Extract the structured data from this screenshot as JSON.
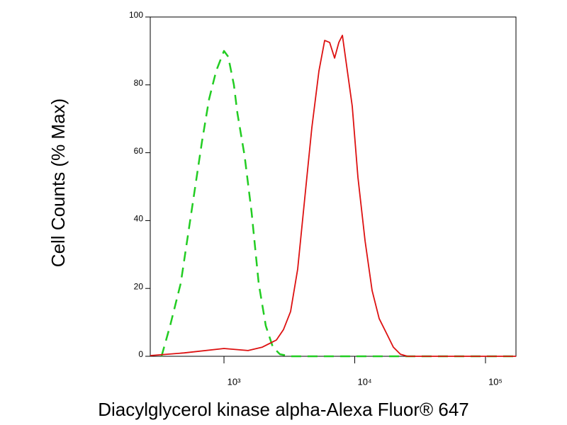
{
  "chart_data": {
    "type": "line",
    "x_label": "Diacylglycerol kinase alpha-Alexa Fluor® 647",
    "y_label": "Cell Counts (% Max)",
    "xscale": "log",
    "xlim": [
      273,
      171000
    ],
    "ylim": [
      0,
      100
    ],
    "xticks": [
      {
        "value": 1000,
        "label": "10³"
      },
      {
        "value": 10000,
        "label": "10⁴"
      },
      {
        "value": 100000,
        "label": "10⁵"
      }
    ],
    "yticks": [
      0,
      20,
      40,
      60,
      80,
      100
    ],
    "series": [
      {
        "color": "#22cc22",
        "linestyle": "dashed",
        "x": [
          333,
          387,
          467,
          563,
          679,
          769,
          871,
          1000,
          1078,
          1191,
          1268,
          1437,
          1627,
          1843,
          2088,
          2366,
          2680,
          3230,
          171000
        ],
        "values": [
          0,
          9,
          21.5,
          42.4,
          63.3,
          75.8,
          84.1,
          90,
          88.3,
          80,
          71.6,
          59.1,
          42.4,
          21.5,
          9,
          2.7,
          0.6,
          0,
          0
        ]
      },
      {
        "color": "#dd1111",
        "linestyle": "solid",
        "x": [
          273,
          497,
          1000,
          1528,
          1963,
          2518,
          2853,
          3230,
          3662,
          4149,
          4700,
          5323,
          5888,
          6427,
          7015,
          7557,
          8042,
          8776,
          9575,
          10575,
          11990,
          13580,
          15380,
          17420,
          19730,
          22370,
          25350,
          171000
        ],
        "values": [
          0.2,
          1,
          2.3,
          1.7,
          2.7,
          4.8,
          7.9,
          13.2,
          25.7,
          46.6,
          67.4,
          84.1,
          93.1,
          92.5,
          87.9,
          92.5,
          94.6,
          84.1,
          73.7,
          52.8,
          34,
          19.4,
          11.1,
          6.9,
          2.7,
          0.6,
          0,
          0
        ]
      }
    ]
  }
}
